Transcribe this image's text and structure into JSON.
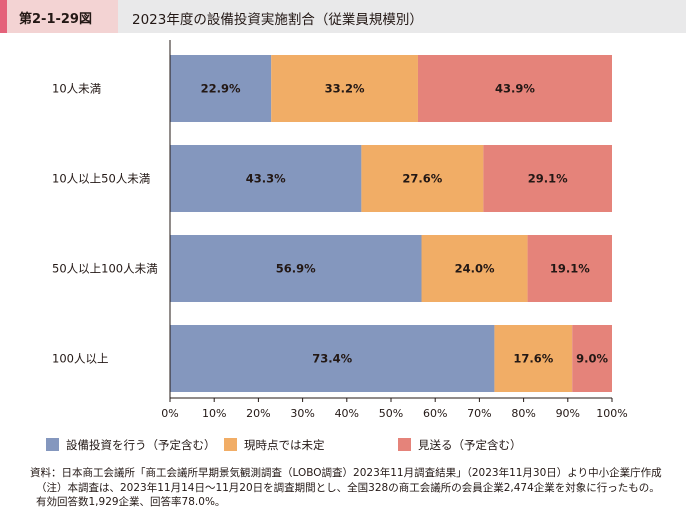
{
  "header": {
    "figure_number": "第2-1-29図",
    "title": "2023年度の設備投資実施割合（従業員規模別）"
  },
  "colors": {
    "series": [
      "#8497be",
      "#f1ad66",
      "#e5837a"
    ],
    "bar_text": "#231815",
    "axis": "#231815",
    "header_bg": "#e9e9ea",
    "tag_bg": "#f3d3d3",
    "tag_accent": "#e4627a"
  },
  "chart_data": {
    "type": "bar",
    "orientation": "horizontal",
    "stacked": true,
    "categories": [
      "10人未満",
      "10人以上50人未満",
      "50人以上100人未満",
      "100人以上"
    ],
    "series": [
      {
        "name": "設備投資を行う（予定含む）",
        "values": [
          22.9,
          43.3,
          56.9,
          73.4
        ]
      },
      {
        "name": "現時点では未定",
        "values": [
          33.2,
          27.6,
          24.0,
          17.6
        ]
      },
      {
        "name": "見送る（予定含む）",
        "values": [
          43.9,
          29.1,
          19.1,
          9.0
        ]
      }
    ],
    "xlim": [
      0,
      100
    ],
    "xticks": [
      "0%",
      "10%",
      "20%",
      "30%",
      "40%",
      "50%",
      "60%",
      "70%",
      "80%",
      "90%",
      "100%"
    ],
    "grid": false,
    "legend_position": "bottom"
  },
  "legend": [
    {
      "label": "設備投資を行う（予定含む）",
      "icon": "square-swatch"
    },
    {
      "label": "現時点では未定",
      "icon": "square-swatch"
    },
    {
      "label": "見送る（予定含む）",
      "icon": "square-swatch"
    }
  ],
  "notes": {
    "source": "資料：日本商工会議所「商工会議所早期景気観測調査（LOBO調査）2023年11月調査結果」（2023年11月30日）より中小企業庁作成",
    "note": "（注）本調査は、2023年11月14日～11月20日を調査期間とし、全国328の商工会議所の会員企業2,474企業を対象に行ったもの。有効回答数1,929企業、回答率78.0%。"
  }
}
